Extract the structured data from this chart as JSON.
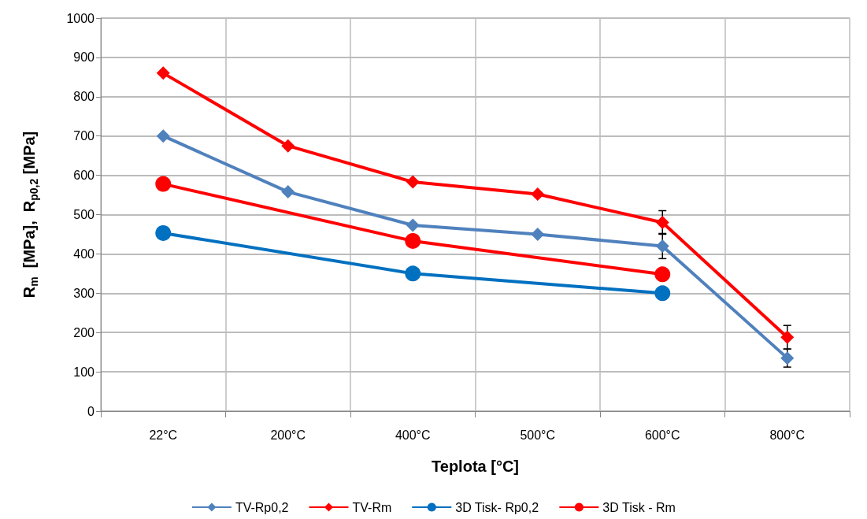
{
  "chart_data": {
    "type": "line",
    "xlabel": "Teplota [°C]",
    "ylabel": "R$_{m}$  [MPa],  R$_{p0,2}$ [MPa]",
    "categories": [
      "22°C",
      "200°C",
      "400°C",
      "500°C",
      "600°C",
      "800°C"
    ],
    "series": [
      {
        "name": "TV-Rp0,2",
        "color": "#4f81bd",
        "marker": "diamond",
        "values": [
          700,
          558,
          473,
          450,
          420,
          135
        ],
        "errors": [
          null,
          null,
          null,
          null,
          32,
          23
        ]
      },
      {
        "name": "TV-Rm",
        "color": "#ff0000",
        "marker": "diamond",
        "values": [
          860,
          675,
          583,
          552,
          480,
          188
        ],
        "errors": [
          null,
          null,
          null,
          null,
          30,
          30
        ]
      },
      {
        "name": "3D Tisk- Rp0,2",
        "color": "#0070c0",
        "marker": "circle",
        "values": [
          453,
          null,
          350,
          null,
          300,
          null
        ]
      },
      {
        "name": "3D Tisk - Rm",
        "color": "#ff0000",
        "marker": "circle",
        "values": [
          578,
          null,
          433,
          null,
          348,
          null
        ]
      }
    ],
    "ylim": [
      0,
      1000
    ],
    "yticks": [
      0,
      100,
      200,
      300,
      400,
      500,
      600,
      700,
      800,
      900,
      1000
    ],
    "grid": true,
    "legend": "bottom",
    "line_style": "solid"
  }
}
